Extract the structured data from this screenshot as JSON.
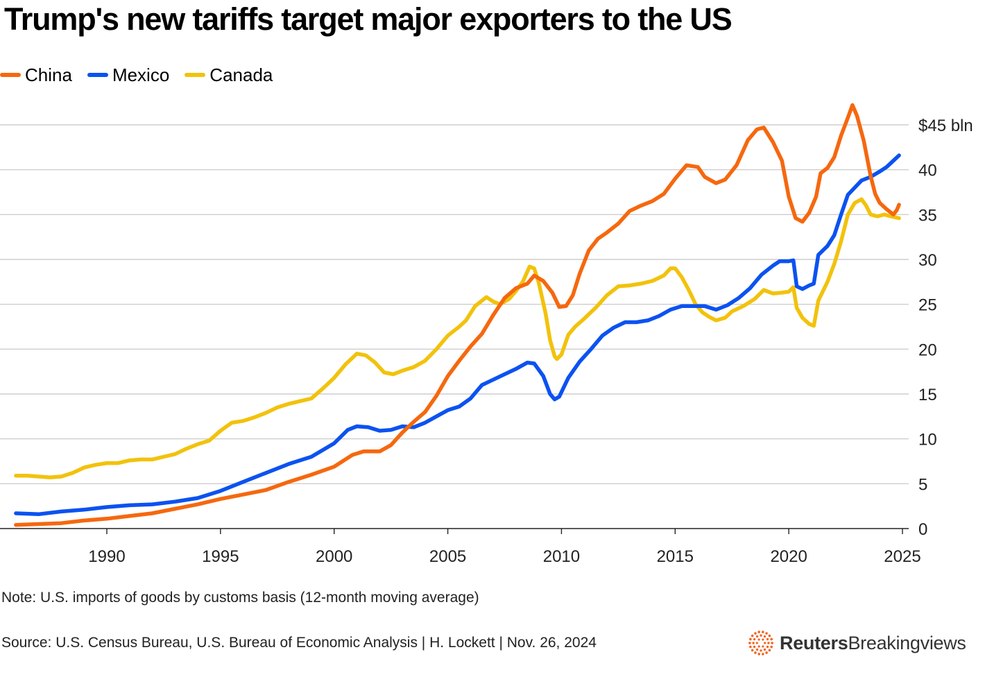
{
  "header": {
    "title": "Trump's new tariffs target major exporters to the US"
  },
  "legend": [
    {
      "label": "China",
      "color": "#f5680f"
    },
    {
      "label": "Mexico",
      "color": "#0b52f0"
    },
    {
      "label": "Canada",
      "color": "#f2c20c"
    }
  ],
  "footer": {
    "note": "Note: U.S. imports of goods by customs basis (12-month moving average)",
    "source": "Source: U.S. Census Bureau, U.S. Bureau of Economic Analysis | H. Lockett | Nov. 26, 2024",
    "brand_strong": "Reuters",
    "brand_light": "Breakingviews",
    "brand_icon": "reuters-logo-icon",
    "brand_color": "#f26522"
  },
  "chart_data": {
    "type": "line",
    "title": "Trump's new tariffs target major exporters to the US",
    "xlabel": "",
    "ylabel": "",
    "xlim": [
      1985.8,
      2025.1
    ],
    "ylim": [
      0,
      45
    ],
    "y_unit_label": "$45 bln",
    "x_ticks": [
      {
        "value": 1990,
        "label": "1990"
      },
      {
        "value": 1995,
        "label": "1995"
      },
      {
        "value": 2000,
        "label": "2000"
      },
      {
        "value": 2005,
        "label": "2005"
      },
      {
        "value": 2010,
        "label": "2010"
      },
      {
        "value": 2015,
        "label": "2015"
      },
      {
        "value": 2020,
        "label": "2020"
      },
      {
        "value": 2025,
        "label": "2025"
      }
    ],
    "y_ticks": [
      {
        "value": 0,
        "label": "0"
      },
      {
        "value": 5,
        "label": "5"
      },
      {
        "value": 10,
        "label": "10"
      },
      {
        "value": 15,
        "label": "15"
      },
      {
        "value": 20,
        "label": "20"
      },
      {
        "value": 25,
        "label": "25"
      },
      {
        "value": 30,
        "label": "30"
      },
      {
        "value": 35,
        "label": "35"
      },
      {
        "value": 40,
        "label": "40"
      },
      {
        "value": 45,
        "label": "$45 bln"
      }
    ],
    "grid": true,
    "legend_position": "top-left",
    "series": [
      {
        "name": "China",
        "color": "#f5680f",
        "points": [
          [
            1986.0,
            0.4
          ],
          [
            1987.0,
            0.5
          ],
          [
            1988.0,
            0.6
          ],
          [
            1989.0,
            0.9
          ],
          [
            1990.0,
            1.1
          ],
          [
            1991.0,
            1.4
          ],
          [
            1992.0,
            1.7
          ],
          [
            1993.0,
            2.2
          ],
          [
            1994.0,
            2.7
          ],
          [
            1995.0,
            3.3
          ],
          [
            1996.0,
            3.8
          ],
          [
            1997.0,
            4.3
          ],
          [
            1998.0,
            5.2
          ],
          [
            1999.0,
            6.0
          ],
          [
            2000.0,
            6.9
          ],
          [
            2000.8,
            8.2
          ],
          [
            2001.3,
            8.6
          ],
          [
            2002.0,
            8.6
          ],
          [
            2002.5,
            9.3
          ],
          [
            2003.0,
            10.7
          ],
          [
            2003.5,
            11.9
          ],
          [
            2004.0,
            13.0
          ],
          [
            2004.5,
            14.8
          ],
          [
            2005.0,
            17.0
          ],
          [
            2005.5,
            18.7
          ],
          [
            2006.0,
            20.3
          ],
          [
            2006.5,
            21.7
          ],
          [
            2007.0,
            23.8
          ],
          [
            2007.5,
            25.7
          ],
          [
            2008.0,
            26.8
          ],
          [
            2008.5,
            27.3
          ],
          [
            2008.8,
            28.2
          ],
          [
            2009.2,
            27.6
          ],
          [
            2009.6,
            26.3
          ],
          [
            2009.9,
            24.7
          ],
          [
            2010.2,
            24.8
          ],
          [
            2010.5,
            26.0
          ],
          [
            2010.8,
            28.4
          ],
          [
            2011.2,
            31.0
          ],
          [
            2011.6,
            32.3
          ],
          [
            2012.0,
            33.0
          ],
          [
            2012.5,
            34.0
          ],
          [
            2013.0,
            35.4
          ],
          [
            2013.5,
            36.0
          ],
          [
            2014.0,
            36.5
          ],
          [
            2014.5,
            37.3
          ],
          [
            2015.0,
            39.0
          ],
          [
            2015.5,
            40.5
          ],
          [
            2016.0,
            40.3
          ],
          [
            2016.3,
            39.2
          ],
          [
            2016.8,
            38.5
          ],
          [
            2017.2,
            38.9
          ],
          [
            2017.7,
            40.5
          ],
          [
            2018.2,
            43.3
          ],
          [
            2018.6,
            44.5
          ],
          [
            2018.9,
            44.7
          ],
          [
            2019.3,
            43.1
          ],
          [
            2019.7,
            41.0
          ],
          [
            2020.0,
            37.0
          ],
          [
            2020.3,
            34.6
          ],
          [
            2020.6,
            34.2
          ],
          [
            2020.9,
            35.2
          ],
          [
            2021.2,
            37.0
          ],
          [
            2021.4,
            39.6
          ],
          [
            2021.7,
            40.2
          ],
          [
            2022.0,
            41.4
          ],
          [
            2022.3,
            43.8
          ],
          [
            2022.6,
            45.8
          ],
          [
            2022.8,
            47.2
          ],
          [
            2023.0,
            46.0
          ],
          [
            2023.3,
            43.2
          ],
          [
            2023.6,
            39.3
          ],
          [
            2023.8,
            37.3
          ],
          [
            2024.0,
            36.3
          ],
          [
            2024.3,
            35.6
          ],
          [
            2024.5,
            35.2
          ],
          [
            2024.6,
            35.0
          ],
          [
            2024.75,
            35.5
          ],
          [
            2024.85,
            36.1
          ]
        ]
      },
      {
        "name": "Mexico",
        "color": "#0b52f0",
        "points": [
          [
            1986.0,
            1.7
          ],
          [
            1987.0,
            1.6
          ],
          [
            1988.0,
            1.9
          ],
          [
            1989.0,
            2.1
          ],
          [
            1990.0,
            2.4
          ],
          [
            1991.0,
            2.6
          ],
          [
            1992.0,
            2.7
          ],
          [
            1993.0,
            3.0
          ],
          [
            1994.0,
            3.4
          ],
          [
            1995.0,
            4.2
          ],
          [
            1996.0,
            5.2
          ],
          [
            1997.0,
            6.2
          ],
          [
            1998.0,
            7.2
          ],
          [
            1999.0,
            8.0
          ],
          [
            2000.0,
            9.5
          ],
          [
            2000.6,
            11.0
          ],
          [
            2001.0,
            11.4
          ],
          [
            2001.5,
            11.3
          ],
          [
            2002.0,
            10.9
          ],
          [
            2002.5,
            11.0
          ],
          [
            2003.0,
            11.4
          ],
          [
            2003.5,
            11.3
          ],
          [
            2004.0,
            11.8
          ],
          [
            2004.5,
            12.5
          ],
          [
            2005.0,
            13.2
          ],
          [
            2005.5,
            13.6
          ],
          [
            2006.0,
            14.5
          ],
          [
            2006.5,
            16.0
          ],
          [
            2007.0,
            16.6
          ],
          [
            2007.5,
            17.2
          ],
          [
            2008.0,
            17.8
          ],
          [
            2008.5,
            18.5
          ],
          [
            2008.8,
            18.4
          ],
          [
            2009.2,
            17.0
          ],
          [
            2009.5,
            15.0
          ],
          [
            2009.7,
            14.4
          ],
          [
            2009.9,
            14.7
          ],
          [
            2010.3,
            16.8
          ],
          [
            2010.8,
            18.6
          ],
          [
            2011.3,
            20.0
          ],
          [
            2011.8,
            21.5
          ],
          [
            2012.3,
            22.4
          ],
          [
            2012.8,
            23.0
          ],
          [
            2013.3,
            23.0
          ],
          [
            2013.8,
            23.2
          ],
          [
            2014.3,
            23.7
          ],
          [
            2014.8,
            24.4
          ],
          [
            2015.3,
            24.8
          ],
          [
            2015.8,
            24.8
          ],
          [
            2016.3,
            24.8
          ],
          [
            2016.8,
            24.4
          ],
          [
            2017.3,
            24.9
          ],
          [
            2017.8,
            25.7
          ],
          [
            2018.3,
            26.8
          ],
          [
            2018.8,
            28.3
          ],
          [
            2019.3,
            29.3
          ],
          [
            2019.6,
            29.8
          ],
          [
            2020.0,
            29.8
          ],
          [
            2020.2,
            29.9
          ],
          [
            2020.35,
            27.0
          ],
          [
            2020.6,
            26.7
          ],
          [
            2020.9,
            27.1
          ],
          [
            2021.1,
            27.3
          ],
          [
            2021.3,
            30.5
          ],
          [
            2021.7,
            31.5
          ],
          [
            2022.0,
            32.7
          ],
          [
            2022.3,
            35.0
          ],
          [
            2022.6,
            37.2
          ],
          [
            2022.9,
            38.0
          ],
          [
            2023.2,
            38.8
          ],
          [
            2023.6,
            39.2
          ],
          [
            2024.0,
            39.8
          ],
          [
            2024.3,
            40.3
          ],
          [
            2024.6,
            41.0
          ],
          [
            2024.85,
            41.6
          ]
        ]
      },
      {
        "name": "Canada",
        "color": "#f2c20c",
        "points": [
          [
            1986.0,
            5.9
          ],
          [
            1986.5,
            5.9
          ],
          [
            1987.0,
            5.8
          ],
          [
            1987.5,
            5.7
          ],
          [
            1988.0,
            5.8
          ],
          [
            1988.5,
            6.2
          ],
          [
            1989.0,
            6.8
          ],
          [
            1989.5,
            7.1
          ],
          [
            1990.0,
            7.3
          ],
          [
            1990.5,
            7.3
          ],
          [
            1991.0,
            7.6
          ],
          [
            1991.5,
            7.7
          ],
          [
            1992.0,
            7.7
          ],
          [
            1992.5,
            8.0
          ],
          [
            1993.0,
            8.3
          ],
          [
            1993.5,
            8.9
          ],
          [
            1994.0,
            9.4
          ],
          [
            1994.5,
            9.8
          ],
          [
            1995.0,
            10.9
          ],
          [
            1995.5,
            11.8
          ],
          [
            1996.0,
            12.0
          ],
          [
            1996.5,
            12.4
          ],
          [
            1997.0,
            12.9
          ],
          [
            1997.5,
            13.5
          ],
          [
            1998.0,
            13.9
          ],
          [
            1998.5,
            14.2
          ],
          [
            1999.0,
            14.5
          ],
          [
            1999.5,
            15.6
          ],
          [
            2000.0,
            16.8
          ],
          [
            2000.5,
            18.3
          ],
          [
            2001.0,
            19.5
          ],
          [
            2001.4,
            19.3
          ],
          [
            2001.8,
            18.5
          ],
          [
            2002.2,
            17.4
          ],
          [
            2002.6,
            17.2
          ],
          [
            2003.0,
            17.6
          ],
          [
            2003.5,
            18.0
          ],
          [
            2004.0,
            18.7
          ],
          [
            2004.5,
            20.0
          ],
          [
            2005.0,
            21.5
          ],
          [
            2005.5,
            22.5
          ],
          [
            2005.8,
            23.2
          ],
          [
            2006.2,
            24.8
          ],
          [
            2006.7,
            25.8
          ],
          [
            2007.0,
            25.3
          ],
          [
            2007.3,
            25.0
          ],
          [
            2007.7,
            25.6
          ],
          [
            2008.0,
            26.5
          ],
          [
            2008.3,
            27.5
          ],
          [
            2008.6,
            29.2
          ],
          [
            2008.8,
            29.0
          ],
          [
            2009.0,
            27.4
          ],
          [
            2009.3,
            24.0
          ],
          [
            2009.5,
            21.0
          ],
          [
            2009.7,
            19.2
          ],
          [
            2009.8,
            18.9
          ],
          [
            2010.0,
            19.4
          ],
          [
            2010.3,
            21.6
          ],
          [
            2010.6,
            22.5
          ],
          [
            2011.0,
            23.4
          ],
          [
            2011.5,
            24.6
          ],
          [
            2012.0,
            26.0
          ],
          [
            2012.5,
            27.0
          ],
          [
            2013.0,
            27.1
          ],
          [
            2013.5,
            27.3
          ],
          [
            2014.0,
            27.6
          ],
          [
            2014.5,
            28.2
          ],
          [
            2014.8,
            29.0
          ],
          [
            2015.0,
            29.0
          ],
          [
            2015.3,
            28.0
          ],
          [
            2015.6,
            26.6
          ],
          [
            2015.9,
            25.0
          ],
          [
            2016.2,
            24.1
          ],
          [
            2016.5,
            23.6
          ],
          [
            2016.8,
            23.2
          ],
          [
            2017.2,
            23.5
          ],
          [
            2017.5,
            24.2
          ],
          [
            2018.0,
            24.8
          ],
          [
            2018.5,
            25.6
          ],
          [
            2018.9,
            26.6
          ],
          [
            2019.3,
            26.2
          ],
          [
            2019.7,
            26.3
          ],
          [
            2020.0,
            26.4
          ],
          [
            2020.2,
            26.9
          ],
          [
            2020.35,
            24.6
          ],
          [
            2020.6,
            23.5
          ],
          [
            2020.9,
            22.8
          ],
          [
            2021.1,
            22.6
          ],
          [
            2021.3,
            25.4
          ],
          [
            2021.7,
            27.5
          ],
          [
            2022.0,
            29.5
          ],
          [
            2022.3,
            32.0
          ],
          [
            2022.6,
            35.0
          ],
          [
            2022.9,
            36.3
          ],
          [
            2023.2,
            36.7
          ],
          [
            2023.4,
            36.0
          ],
          [
            2023.6,
            35.0
          ],
          [
            2023.9,
            34.8
          ],
          [
            2024.2,
            35.0
          ],
          [
            2024.5,
            34.8
          ],
          [
            2024.85,
            34.6
          ]
        ]
      }
    ]
  }
}
